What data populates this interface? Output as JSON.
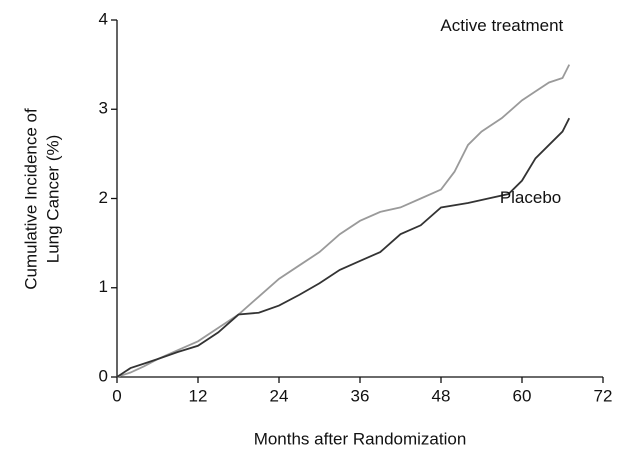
{
  "chart_data": {
    "type": "line",
    "xlabel": "Months after Randomization",
    "ylabel": [
      "Cumulative Incidence of",
      "Lung Cancer (%)"
    ],
    "xlim": [
      0,
      72
    ],
    "xticks": [
      0,
      12,
      24,
      36,
      48,
      60,
      72
    ],
    "ylim": [
      0,
      4
    ],
    "yticks": [
      0,
      1,
      2,
      3,
      4
    ],
    "series": [
      {
        "name": "Active treatment",
        "color": "#9a9a9a",
        "x": [
          0,
          2,
          4,
          6,
          9,
          12,
          15,
          18,
          21,
          24,
          27,
          30,
          33,
          36,
          39,
          42,
          45,
          48,
          50,
          52,
          54,
          57,
          60,
          62,
          64,
          66,
          67
        ],
        "values": [
          0,
          0.05,
          0.12,
          0.2,
          0.3,
          0.4,
          0.55,
          0.7,
          0.9,
          1.1,
          1.25,
          1.4,
          1.6,
          1.75,
          1.85,
          1.9,
          2.0,
          2.1,
          2.3,
          2.6,
          2.75,
          2.9,
          3.1,
          3.2,
          3.3,
          3.35,
          3.5
        ]
      },
      {
        "name": "Placebo",
        "color": "#333333",
        "x": [
          0,
          2,
          4,
          6,
          9,
          12,
          15,
          18,
          21,
          24,
          27,
          30,
          33,
          36,
          39,
          42,
          45,
          48,
          52,
          55,
          58,
          60,
          62,
          64,
          66,
          67
        ],
        "values": [
          0,
          0.1,
          0.15,
          0.2,
          0.28,
          0.35,
          0.5,
          0.7,
          0.72,
          0.8,
          0.92,
          1.05,
          1.2,
          1.3,
          1.4,
          1.6,
          1.7,
          1.9,
          1.95,
          2.0,
          2.05,
          2.2,
          2.45,
          2.6,
          2.75,
          2.9
        ]
      }
    ]
  }
}
